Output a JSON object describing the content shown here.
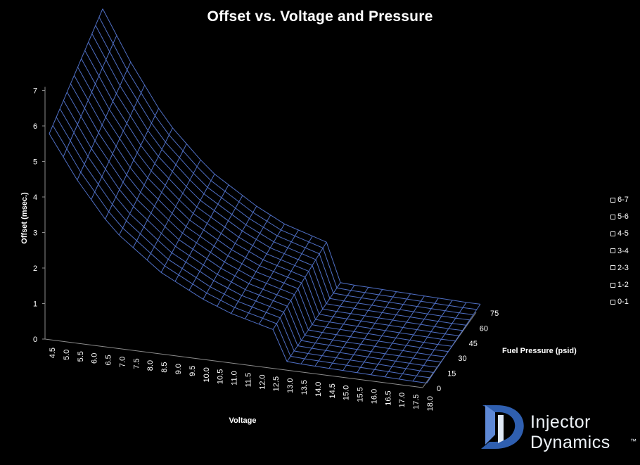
{
  "chart_data": {
    "type": "surface",
    "title": "Offset vs. Voltage and Pressure",
    "xlabel": "Voltage",
    "ylabel": "Fuel Pressure (psid)",
    "zlabel": "Offset (msec.)",
    "x": [
      "4.5",
      "5.0",
      "5.5",
      "6.0",
      "6.5",
      "7.0",
      "7.5",
      "8.0",
      "8.5",
      "9.0",
      "9.5",
      "10.0",
      "10.5",
      "11.0",
      "11.5",
      "12.0",
      "12.5",
      "13.0",
      "13.5",
      "14.0",
      "14.5",
      "15.0",
      "15.5",
      "16.0",
      "16.5",
      "17.0",
      "17.5",
      "18.0"
    ],
    "y_ticks": [
      "0",
      "15",
      "30",
      "45",
      "60",
      "75"
    ],
    "z_ticks": [
      "0",
      "1",
      "2",
      "3",
      "4",
      "5",
      "6",
      "7"
    ],
    "zlim": [
      0,
      7
    ],
    "offset_at_min_pressure": [
      5.7,
      5.1,
      4.5,
      4.0,
      3.5,
      3.1,
      2.8,
      2.5,
      2.2,
      2.0,
      1.8,
      1.6,
      1.45,
      1.3,
      1.2,
      1.1,
      1.0,
      0.15,
      0.13,
      0.12,
      0.11,
      0.1,
      0.09,
      0.08,
      0.07,
      0.06,
      0.05,
      0.05
    ],
    "pressure_rise_at_max_pressure": [
      1.4,
      1.3,
      1.2,
      1.1,
      1.0,
      0.9,
      0.8,
      0.7,
      0.65,
      0.6,
      0.55,
      0.5,
      0.45,
      0.4,
      0.38,
      0.36,
      0.34,
      0.1,
      0.1,
      0.1,
      0.1,
      0.1,
      0.1,
      0.1,
      0.1,
      0.1,
      0.1,
      0.1
    ],
    "legend": [
      "6-7",
      "5-6",
      "4-5",
      "3-4",
      "2-3",
      "1-2",
      "0-1"
    ],
    "legend_position": "right",
    "grid": false
  },
  "logo": {
    "line1": "Injector",
    "line2": "Dynamics",
    "tm": "™"
  },
  "colors": {
    "background": "#000000",
    "mesh": "#4f6fc4",
    "axis": "#8c8c8c",
    "text": "#ffffff",
    "logo_blue": "#2f5fb0"
  }
}
